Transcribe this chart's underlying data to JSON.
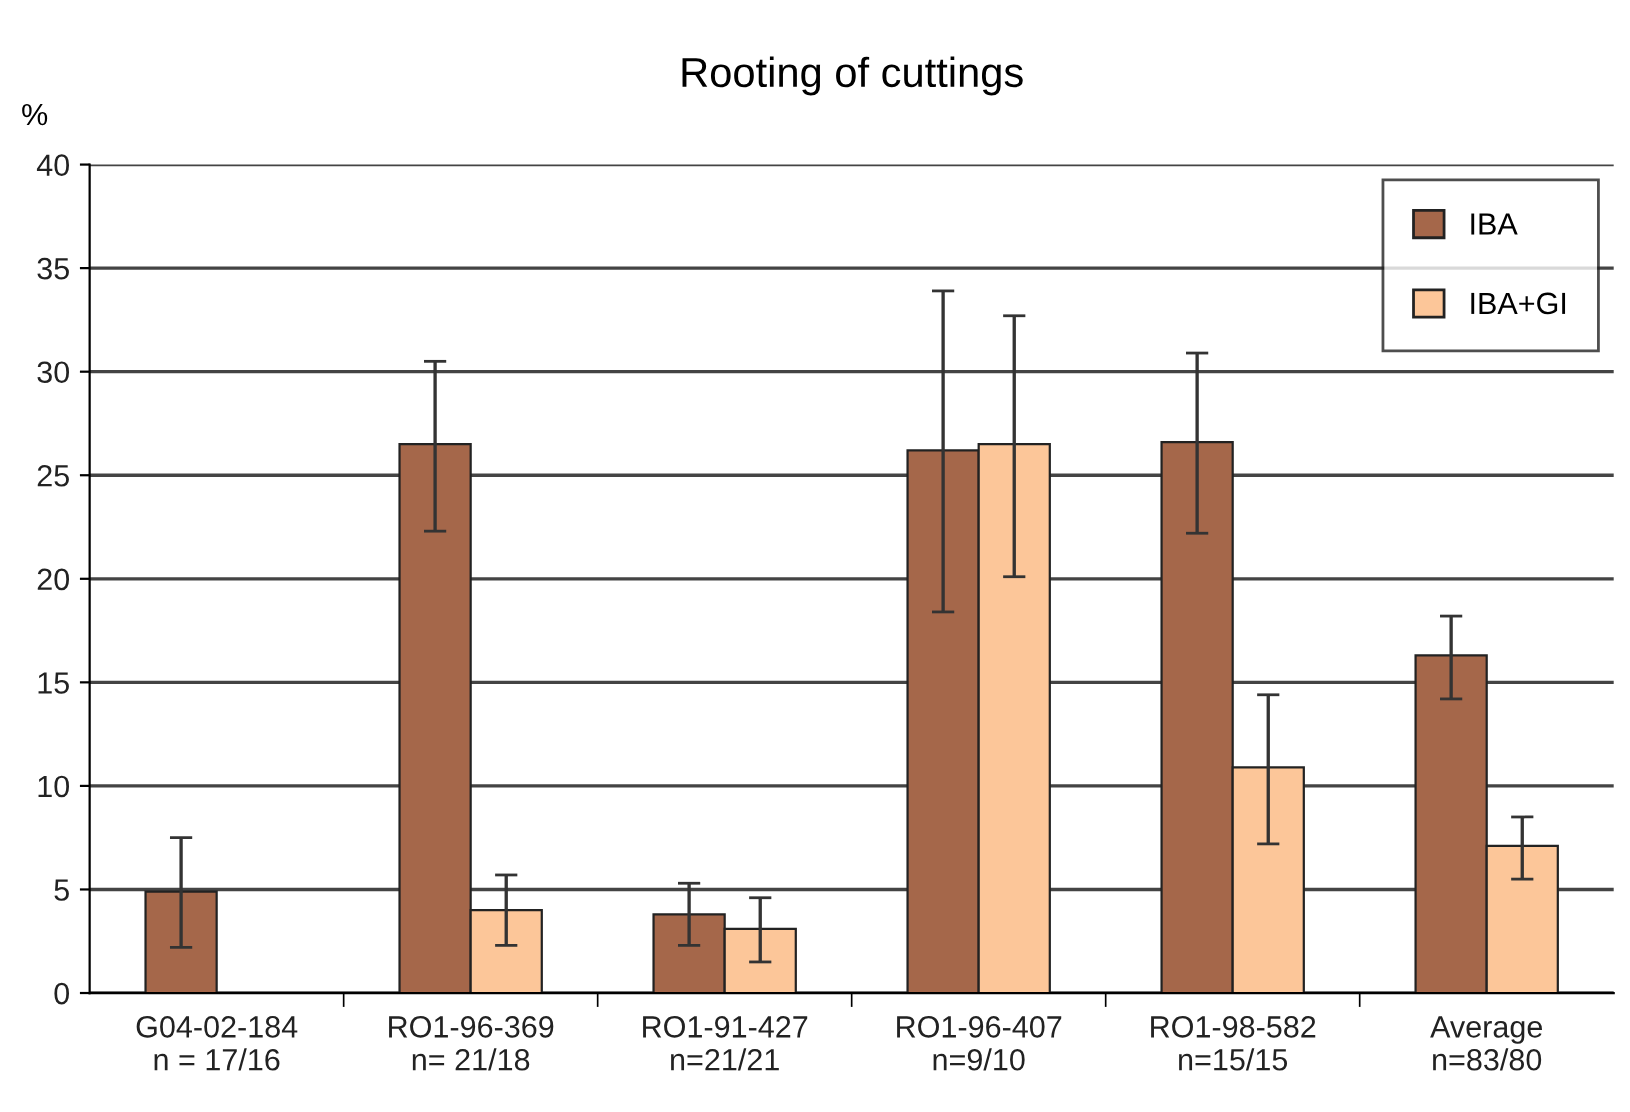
{
  "chart_data": {
    "type": "bar",
    "title": "Rooting of cuttings",
    "ylabel": "%",
    "categories": [
      "G04-02-184\nn = 17/16",
      "RO1-96-369\nn= 21/18",
      "RO1-91-427\nn=21/21",
      "RO1-96-407\nn=9/10",
      "RO1-98-582\nn=15/15",
      "Average\nn=83/80"
    ],
    "series": [
      {
        "name": "IBA",
        "color": "#a5674a",
        "values": [
          4.9,
          26.5,
          3.8,
          26.2,
          26.6,
          16.3
        ],
        "errors": [
          [
            2.2,
            7.5
          ],
          [
            22.3,
            30.5
          ],
          [
            2.3,
            5.3
          ],
          [
            18.4,
            33.9
          ],
          [
            22.2,
            30.9
          ],
          [
            14.2,
            18.2
          ]
        ]
      },
      {
        "name": "IBA+GI",
        "color": "#fcc699",
        "values": [
          0,
          4.0,
          3.1,
          26.5,
          10.9,
          7.1
        ],
        "errors": [
          null,
          [
            2.3,
            5.7
          ],
          [
            1.5,
            4.6
          ],
          [
            20.1,
            32.7
          ],
          [
            7.2,
            14.4
          ],
          [
            5.5,
            8.5
          ]
        ]
      }
    ],
    "ylim": [
      0,
      40
    ],
    "yticks": [
      0,
      5,
      10,
      15,
      20,
      25,
      30,
      35,
      40
    ],
    "grid": "y",
    "legend": "top right"
  }
}
